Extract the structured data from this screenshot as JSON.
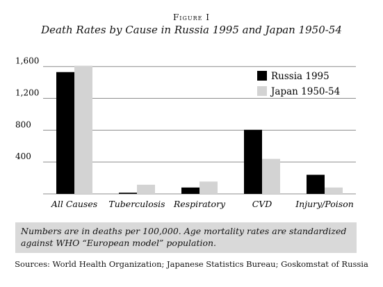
{
  "figure_label": "Figure I",
  "note": "Numbers are in deaths per 100,000. Age mortality rates are standardized against WHO “European model” population.",
  "source": "Sources: World Health Organization; Japanese Statistics Bureau; Goskomstat of Russia",
  "colors": {
    "russia": "#000000",
    "japan": "#d3d3d3",
    "grid": "#8c8c8c"
  },
  "chart_data": {
    "type": "bar",
    "title": "Death Rates by Cause in Russia 1995 and Japan 1950-54",
    "categories": [
      "All Causes",
      "Tuberculosis",
      "Respiratory",
      "CVD",
      "Injury/Poison"
    ],
    "series": [
      {
        "name": "Russia 1995",
        "values": [
          1530,
          15,
          80,
          805,
          240
        ]
      },
      {
        "name": "Japan 1950-54",
        "values": [
          1610,
          115,
          155,
          440,
          80
        ]
      }
    ],
    "yticks": [
      400,
      800,
      1200,
      1600
    ],
    "ytick_labels": [
      "400",
      "800",
      "1,200",
      "1,600"
    ],
    "ylim": [
      0,
      1650
    ],
    "grid": true,
    "legend": "top-right"
  }
}
